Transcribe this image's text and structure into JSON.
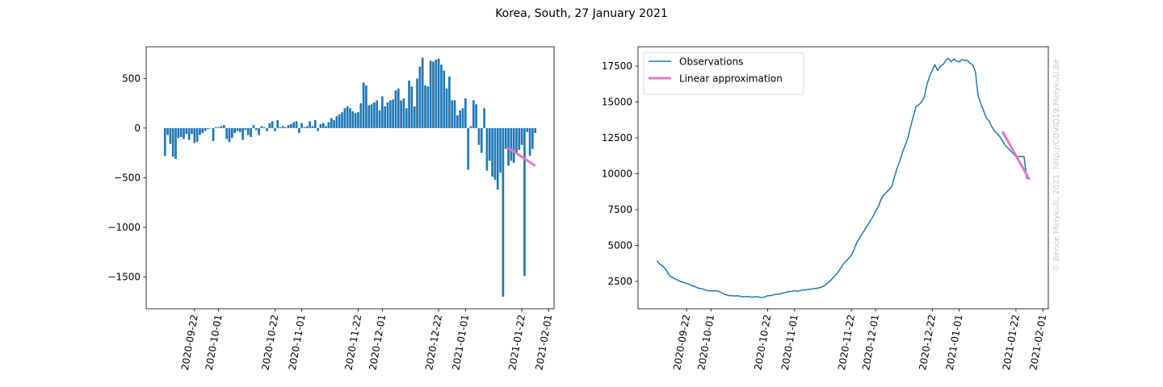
{
  "title": "Korea, South, 27 January 2021",
  "watermark": "© Bence Melykuti, 2021. http://COVID19.Melykuti.Be",
  "chart_data": [
    {
      "type": "bar",
      "xlim": [
        "2020-09-04",
        "2021-02-03"
      ],
      "ylim": [
        -1822,
        820
      ],
      "xticks": [
        "2020-09-22",
        "2020-10-01",
        "2020-10-22",
        "2020-11-01",
        "2020-11-22",
        "2020-12-01",
        "2020-12-22",
        "2021-01-01",
        "2021-01-22",
        "2021-02-01"
      ],
      "yticks": [
        500,
        0,
        {
          "value": -500,
          "label": "−500"
        },
        {
          "value": -1000,
          "label": "−1000"
        },
        {
          "value": -1500,
          "label": "−1500"
        }
      ],
      "series": [
        {
          "type": "bar",
          "color": "#1f77b4",
          "x": [
            "2020-09-11",
            "2020-09-12",
            "2020-09-13",
            "2020-09-14",
            "2020-09-15",
            "2020-09-16",
            "2020-09-17",
            "2020-09-18",
            "2020-09-19",
            "2020-09-20",
            "2020-09-21",
            "2020-09-22",
            "2020-09-23",
            "2020-09-24",
            "2020-09-25",
            "2020-09-26",
            "2020-09-27",
            "2020-09-28",
            "2020-09-29",
            "2020-09-30",
            "2020-10-01",
            "2020-10-02",
            "2020-10-03",
            "2020-10-04",
            "2020-10-05",
            "2020-10-06",
            "2020-10-07",
            "2020-10-08",
            "2020-10-09",
            "2020-10-10",
            "2020-10-11",
            "2020-10-12",
            "2020-10-13",
            "2020-10-14",
            "2020-10-15",
            "2020-10-16",
            "2020-10-17",
            "2020-10-18",
            "2020-10-19",
            "2020-10-20",
            "2020-10-21",
            "2020-10-22",
            "2020-10-23",
            "2020-10-24",
            "2020-10-25",
            "2020-10-26",
            "2020-10-27",
            "2020-10-28",
            "2020-10-29",
            "2020-10-30",
            "2020-10-31",
            "2020-11-01",
            "2020-11-02",
            "2020-11-03",
            "2020-11-04",
            "2020-11-05",
            "2020-11-06",
            "2020-11-07",
            "2020-11-08",
            "2020-11-09",
            "2020-11-10",
            "2020-11-11",
            "2020-11-12",
            "2020-11-13",
            "2020-11-14",
            "2020-11-15",
            "2020-11-16",
            "2020-11-17",
            "2020-11-18",
            "2020-11-19",
            "2020-11-20",
            "2020-11-21",
            "2020-11-22",
            "2020-11-23",
            "2020-11-24",
            "2020-11-25",
            "2020-11-26",
            "2020-11-27",
            "2020-11-28",
            "2020-11-29",
            "2020-11-30",
            "2020-12-01",
            "2020-12-02",
            "2020-12-03",
            "2020-12-04",
            "2020-12-05",
            "2020-12-06",
            "2020-12-07",
            "2020-12-08",
            "2020-12-09",
            "2020-12-10",
            "2020-12-11",
            "2020-12-12",
            "2020-12-13",
            "2020-12-14",
            "2020-12-15",
            "2020-12-16",
            "2020-12-17",
            "2020-12-18",
            "2020-12-19",
            "2020-12-20",
            "2020-12-21",
            "2020-12-22",
            "2020-12-23",
            "2020-12-24",
            "2020-12-25",
            "2020-12-26",
            "2020-12-27",
            "2020-12-28",
            "2020-12-29",
            "2020-12-30",
            "2020-12-31",
            "2021-01-01",
            "2021-01-02",
            "2021-01-03",
            "2021-01-04",
            "2021-01-05",
            "2021-01-06",
            "2021-01-07",
            "2021-01-08",
            "2021-01-09",
            "2021-01-10",
            "2021-01-11",
            "2021-01-12",
            "2021-01-13",
            "2021-01-14",
            "2021-01-15",
            "2021-01-16",
            "2021-01-17",
            "2021-01-18",
            "2021-01-19",
            "2021-01-20",
            "2021-01-21",
            "2021-01-22",
            "2021-01-23",
            "2021-01-24",
            "2021-01-25",
            "2021-01-26",
            "2021-01-27"
          ],
          "values": [
            -280,
            -70,
            -160,
            -290,
            -310,
            -100,
            -90,
            -110,
            -60,
            -120,
            -60,
            -150,
            -140,
            -70,
            -50,
            -30,
            -10,
            0,
            -130,
            10,
            10,
            20,
            30,
            -110,
            -140,
            -100,
            -50,
            -30,
            -40,
            -120,
            -20,
            -70,
            -90,
            30,
            -20,
            -70,
            20,
            10,
            -30,
            50,
            70,
            -30,
            80,
            10,
            20,
            10,
            30,
            40,
            60,
            70,
            -50,
            50,
            10,
            20,
            70,
            20,
            80,
            -30,
            40,
            50,
            20,
            60,
            100,
            80,
            120,
            140,
            160,
            200,
            220,
            200,
            170,
            150,
            160,
            250,
            460,
            430,
            230,
            240,
            260,
            280,
            180,
            320,
            220,
            260,
            280,
            290,
            380,
            400,
            280,
            300,
            200,
            480,
            420,
            220,
            500,
            620,
            710,
            430,
            420,
            680,
            670,
            690,
            700,
            640,
            580,
            400,
            520,
            280,
            280,
            130,
            180,
            200,
            300,
            -420,
            20,
            280,
            240,
            -170,
            -250,
            200,
            -430,
            -330,
            -490,
            -520,
            -620,
            -450,
            -1700,
            -210,
            -380,
            -330,
            -350,
            -250,
            -220,
            -170,
            -1490,
            -40,
            -280,
            -210,
            -50
          ]
        },
        {
          "type": "line",
          "color": "#e377c2",
          "x": [
            "2021-01-17",
            "2021-01-27"
          ],
          "values": [
            -200,
            -380
          ]
        }
      ]
    },
    {
      "type": "line",
      "xlim": [
        "2020-09-04",
        "2021-02-03"
      ],
      "ylim": [
        590,
        18850
      ],
      "xticks": [
        "2020-09-22",
        "2020-10-01",
        "2020-10-22",
        "2020-11-01",
        "2020-11-22",
        "2020-12-01",
        "2020-12-22",
        "2021-01-01",
        "2021-01-22",
        "2021-02-01"
      ],
      "yticks": [
        2500,
        5000,
        7500,
        10000,
        12500,
        15000,
        17500
      ],
      "legend": "upper left",
      "series": [
        {
          "type": "line",
          "name": "Observations",
          "color": "#1f77b4",
          "x": [
            "2020-09-11",
            "2020-09-12",
            "2020-09-13",
            "2020-09-14",
            "2020-09-15",
            "2020-09-16",
            "2020-09-17",
            "2020-09-18",
            "2020-09-19",
            "2020-09-20",
            "2020-09-21",
            "2020-09-22",
            "2020-09-23",
            "2020-09-24",
            "2020-09-25",
            "2020-09-26",
            "2020-09-27",
            "2020-09-28",
            "2020-09-29",
            "2020-09-30",
            "2020-10-01",
            "2020-10-02",
            "2020-10-03",
            "2020-10-04",
            "2020-10-05",
            "2020-10-06",
            "2020-10-07",
            "2020-10-08",
            "2020-10-09",
            "2020-10-10",
            "2020-10-11",
            "2020-10-12",
            "2020-10-13",
            "2020-10-14",
            "2020-10-15",
            "2020-10-16",
            "2020-10-17",
            "2020-10-18",
            "2020-10-19",
            "2020-10-20",
            "2020-10-21",
            "2020-10-22",
            "2020-10-23",
            "2020-10-24",
            "2020-10-25",
            "2020-10-26",
            "2020-10-27",
            "2020-10-28",
            "2020-10-29",
            "2020-10-30",
            "2020-10-31",
            "2020-11-01",
            "2020-11-02",
            "2020-11-03",
            "2020-11-04",
            "2020-11-05",
            "2020-11-06",
            "2020-11-07",
            "2020-11-08",
            "2020-11-09",
            "2020-11-10",
            "2020-11-11",
            "2020-11-12",
            "2020-11-13",
            "2020-11-14",
            "2020-11-15",
            "2020-11-16",
            "2020-11-17",
            "2020-11-18",
            "2020-11-19",
            "2020-11-20",
            "2020-11-21",
            "2020-11-22",
            "2020-11-23",
            "2020-11-24",
            "2020-11-25",
            "2020-11-26",
            "2020-11-27",
            "2020-11-28",
            "2020-11-29",
            "2020-11-30",
            "2020-12-01",
            "2020-12-02",
            "2020-12-03",
            "2020-12-04",
            "2020-12-05",
            "2020-12-06",
            "2020-12-07",
            "2020-12-08",
            "2020-12-09",
            "2020-12-10",
            "2020-12-11",
            "2020-12-12",
            "2020-12-13",
            "2020-12-14",
            "2020-12-15",
            "2020-12-16",
            "2020-12-17",
            "2020-12-18",
            "2020-12-19",
            "2020-12-20",
            "2020-12-21",
            "2020-12-22",
            "2020-12-23",
            "2020-12-24",
            "2020-12-25",
            "2020-12-26",
            "2020-12-27",
            "2020-12-28",
            "2020-12-29",
            "2020-12-30",
            "2020-12-31",
            "2021-01-01",
            "2021-01-02",
            "2021-01-03",
            "2021-01-04",
            "2021-01-05",
            "2021-01-06",
            "2021-01-07",
            "2021-01-08",
            "2021-01-09",
            "2021-01-10",
            "2021-01-11",
            "2021-01-12",
            "2021-01-13",
            "2021-01-14",
            "2021-01-15",
            "2021-01-16",
            "2021-01-17",
            "2021-01-18",
            "2021-01-19",
            "2021-01-20",
            "2021-01-21",
            "2021-01-22",
            "2021-01-23",
            "2021-01-24",
            "2021-01-25",
            "2021-01-26",
            "2021-01-27"
          ],
          "values": [
            3950,
            3700,
            3600,
            3400,
            3100,
            2850,
            2750,
            2650,
            2550,
            2480,
            2420,
            2350,
            2300,
            2200,
            2150,
            2050,
            2000,
            1980,
            1900,
            1850,
            1850,
            1830,
            1850,
            1800,
            1700,
            1600,
            1550,
            1500,
            1500,
            1480,
            1500,
            1450,
            1420,
            1450,
            1440,
            1400,
            1420,
            1430,
            1400,
            1380,
            1420,
            1500,
            1500,
            1550,
            1600,
            1600,
            1650,
            1700,
            1750,
            1800,
            1800,
            1850,
            1820,
            1850,
            1900,
            1900,
            1950,
            1950,
            2000,
            2000,
            2050,
            2100,
            2200,
            2350,
            2500,
            2700,
            2900,
            3100,
            3400,
            3700,
            3900,
            4100,
            4300,
            4700,
            5200,
            5500,
            5800,
            6100,
            6400,
            6700,
            7000,
            7400,
            7700,
            8200,
            8500,
            8700,
            8900,
            9100,
            9800,
            10400,
            10900,
            11500,
            12000,
            12500,
            13300,
            14000,
            14700,
            14800,
            15000,
            15300,
            16200,
            16800,
            17200,
            17600,
            17200,
            17500,
            17600,
            17900,
            18050,
            17800,
            18000,
            17850,
            17800,
            17950,
            17900,
            17900,
            17700,
            17600,
            17100,
            15400,
            14900,
            14400,
            13900,
            13700,
            13300,
            13000,
            12800,
            12600,
            12300,
            12000,
            11800,
            11600,
            11400,
            11200,
            11200,
            11200,
            11200,
            9700,
            9600
          ]
        },
        {
          "type": "line",
          "name": "Linear approximation",
          "color": "#e377c2",
          "x": [
            "2021-01-17",
            "2021-01-27"
          ],
          "values": [
            12950,
            9600
          ]
        }
      ]
    }
  ]
}
